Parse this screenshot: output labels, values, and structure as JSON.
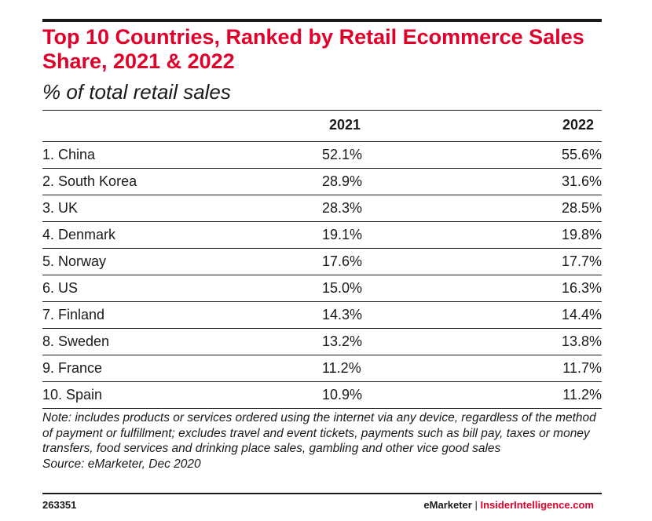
{
  "chart_data": {
    "type": "table",
    "title": "Top 10 Countries, Ranked by Retail Ecommerce Sales Share, 2021 & 2022",
    "subtitle": "% of total retail sales",
    "columns": [
      "",
      "2021",
      "2022"
    ],
    "rows": [
      {
        "country": "1. China",
        "y2021": "52.1%",
        "y2022": "55.6%"
      },
      {
        "country": "2. South Korea",
        "y2021": "28.9%",
        "y2022": "31.6%"
      },
      {
        "country": "3. UK",
        "y2021": "28.3%",
        "y2022": "28.5%"
      },
      {
        "country": "4. Denmark",
        "y2021": "19.1%",
        "y2022": "19.8%"
      },
      {
        "country": "5. Norway",
        "y2021": "17.6%",
        "y2022": "17.7%"
      },
      {
        "country": "6. US",
        "y2021": "15.0%",
        "y2022": "16.3%"
      },
      {
        "country": "7. Finland",
        "y2021": "14.3%",
        "y2022": "14.4%"
      },
      {
        "country": "8. Sweden",
        "y2021": "13.2%",
        "y2022": "13.8%"
      },
      {
        "country": "9. France",
        "y2021": "11.2%",
        "y2022": "11.7%"
      },
      {
        "country": "10. Spain",
        "y2021": "10.9%",
        "y2022": "11.2%"
      }
    ],
    "note": "Note: includes products or services ordered using the internet via any device, regardless of the method of payment or fulfillment; excludes travel and event tickets, payments such as bill pay, taxes or money transfers, food services and drinking place sales, gambling and other vice good sales",
    "source": "Source: eMarketer, Dec 2020"
  },
  "footer": {
    "chart_id": "263351",
    "brand_emarketer": "eMarketer",
    "brand_separator": "|",
    "brand_insider": "InsiderIntelligence.com"
  },
  "colors": {
    "title": "#e0002a",
    "text": "#1a1a1a",
    "rules": "#1a1a1a"
  }
}
